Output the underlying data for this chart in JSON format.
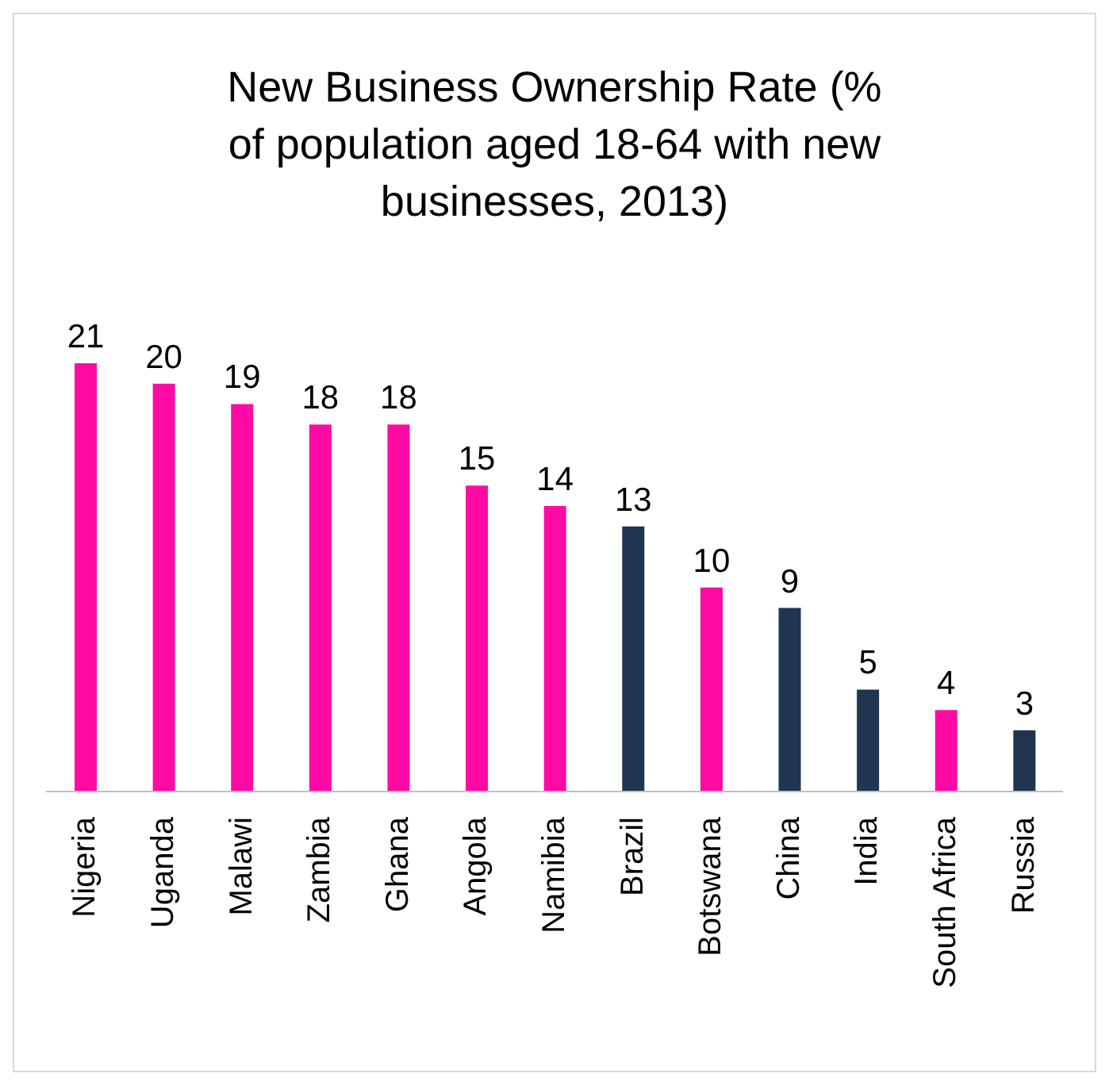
{
  "chart_data": {
    "type": "bar",
    "title": "New Business Ownership Rate (% of population aged 18-64 with new businesses, 2013)",
    "categories": [
      "Nigeria",
      "Uganda",
      "Malawi",
      "Zambia",
      "Ghana",
      "Angola",
      "Namibia",
      "Brazil",
      "Botswana",
      "China",
      "India",
      "South Africa",
      "Russia"
    ],
    "values": [
      21,
      20,
      19,
      18,
      18,
      15,
      14,
      13,
      10,
      9,
      5,
      4,
      3
    ],
    "colors": [
      "#ff0aa5",
      "#ff0aa5",
      "#ff0aa5",
      "#ff0aa5",
      "#ff0aa5",
      "#ff0aa5",
      "#ff0aa5",
      "#1f3550",
      "#ff0aa5",
      "#1f3550",
      "#1f3550",
      "#ff0aa5",
      "#1f3550"
    ],
    "data_labels": true
  }
}
